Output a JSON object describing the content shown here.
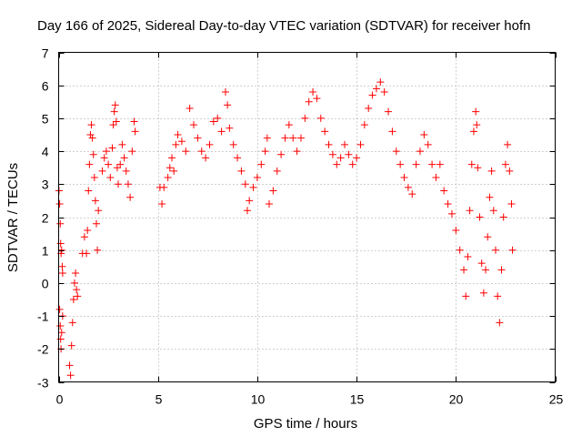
{
  "chart_data": {
    "type": "scatter",
    "title": "Day 166 of 2025, Sidereal Day-to-day VTEC variation (SDTVAR) for receiver hofn",
    "xlabel": "GPS time / hours",
    "ylabel": "SDTVAR / TECUs",
    "xlim": [
      0,
      25
    ],
    "ylim": [
      -3,
      7
    ],
    "xticks": [
      0,
      5,
      10,
      15,
      20,
      25
    ],
    "yticks": [
      -3,
      -2,
      -1,
      0,
      1,
      2,
      3,
      4,
      5,
      6,
      7
    ],
    "grid": true,
    "marker": "+",
    "series": [
      {
        "name": "SDTVAR",
        "color": "#ff0000",
        "points": [
          [
            0.02,
            2.8
          ],
          [
            0.05,
            2.4
          ],
          [
            0.08,
            1.8
          ],
          [
            0.1,
            1.2
          ],
          [
            0.12,
            0.9
          ],
          [
            0.15,
            1.0
          ],
          [
            0.18,
            0.5
          ],
          [
            0.2,
            0.3
          ],
          [
            0.05,
            -0.8
          ],
          [
            0.08,
            -1.3
          ],
          [
            0.1,
            -1.7
          ],
          [
            0.12,
            -2.0
          ],
          [
            0.15,
            -1.5
          ],
          [
            0.2,
            -1.0
          ],
          [
            0.55,
            -2.5
          ],
          [
            0.6,
            -2.8
          ],
          [
            0.65,
            -1.9
          ],
          [
            0.7,
            -1.2
          ],
          [
            0.75,
            -0.5
          ],
          [
            0.8,
            0.0
          ],
          [
            0.85,
            0.3
          ],
          [
            0.9,
            -0.2
          ],
          [
            0.95,
            -0.4
          ],
          [
            1.2,
            0.9
          ],
          [
            1.3,
            1.4
          ],
          [
            1.4,
            0.9
          ],
          [
            1.45,
            1.6
          ],
          [
            1.5,
            2.8
          ],
          [
            1.55,
            3.6
          ],
          [
            1.6,
            4.5
          ],
          [
            1.65,
            4.8
          ],
          [
            1.7,
            4.4
          ],
          [
            1.75,
            3.9
          ],
          [
            1.8,
            3.2
          ],
          [
            1.85,
            2.5
          ],
          [
            1.9,
            1.8
          ],
          [
            1.95,
            1.0
          ],
          [
            2.0,
            2.2
          ],
          [
            2.2,
            3.4
          ],
          [
            2.3,
            3.8
          ],
          [
            2.4,
            4.0
          ],
          [
            2.5,
            3.6
          ],
          [
            2.6,
            3.2
          ],
          [
            2.7,
            4.1
          ],
          [
            2.75,
            4.8
          ],
          [
            2.8,
            5.2
          ],
          [
            2.85,
            5.4
          ],
          [
            2.9,
            4.9
          ],
          [
            2.95,
            3.5
          ],
          [
            3.0,
            3.0
          ],
          [
            3.1,
            3.6
          ],
          [
            3.2,
            4.2
          ],
          [
            3.3,
            3.8
          ],
          [
            3.4,
            3.4
          ],
          [
            3.5,
            3.0
          ],
          [
            3.6,
            2.6
          ],
          [
            3.7,
            4.0
          ],
          [
            3.8,
            4.9
          ],
          [
            3.85,
            4.6
          ],
          [
            5.1,
            2.9
          ],
          [
            5.2,
            2.4
          ],
          [
            5.3,
            2.9
          ],
          [
            5.5,
            3.2
          ],
          [
            5.6,
            3.5
          ],
          [
            5.7,
            3.8
          ],
          [
            5.8,
            3.4
          ],
          [
            5.9,
            4.2
          ],
          [
            6.0,
            4.5
          ],
          [
            6.2,
            4.3
          ],
          [
            6.4,
            4.0
          ],
          [
            6.6,
            5.3
          ],
          [
            6.8,
            4.8
          ],
          [
            7.0,
            4.4
          ],
          [
            7.2,
            4.0
          ],
          [
            7.4,
            3.8
          ],
          [
            7.6,
            4.2
          ],
          [
            7.8,
            4.9
          ],
          [
            8.0,
            5.0
          ],
          [
            8.2,
            4.6
          ],
          [
            8.4,
            5.8
          ],
          [
            8.5,
            5.4
          ],
          [
            8.6,
            4.7
          ],
          [
            8.8,
            4.2
          ],
          [
            9.0,
            3.8
          ],
          [
            9.2,
            3.4
          ],
          [
            9.4,
            3.0
          ],
          [
            9.5,
            2.2
          ],
          [
            9.6,
            2.5
          ],
          [
            9.8,
            2.9
          ],
          [
            10.0,
            3.2
          ],
          [
            10.2,
            3.6
          ],
          [
            10.4,
            4.0
          ],
          [
            10.5,
            4.4
          ],
          [
            10.6,
            2.4
          ],
          [
            10.8,
            2.8
          ],
          [
            11.0,
            3.4
          ],
          [
            11.2,
            3.9
          ],
          [
            11.4,
            4.4
          ],
          [
            11.6,
            4.8
          ],
          [
            11.8,
            4.4
          ],
          [
            12.0,
            4.0
          ],
          [
            12.2,
            4.4
          ],
          [
            12.4,
            5.0
          ],
          [
            12.6,
            5.5
          ],
          [
            12.8,
            5.8
          ],
          [
            13.0,
            5.6
          ],
          [
            13.2,
            5.0
          ],
          [
            13.4,
            4.6
          ],
          [
            13.6,
            4.2
          ],
          [
            13.8,
            3.9
          ],
          [
            14.0,
            3.6
          ],
          [
            14.2,
            3.8
          ],
          [
            14.4,
            4.2
          ],
          [
            14.6,
            3.9
          ],
          [
            14.8,
            3.6
          ],
          [
            15.0,
            3.8
          ],
          [
            15.2,
            4.2
          ],
          [
            15.4,
            4.8
          ],
          [
            15.6,
            5.3
          ],
          [
            15.8,
            5.7
          ],
          [
            16.0,
            5.9
          ],
          [
            16.2,
            6.1
          ],
          [
            16.4,
            5.8
          ],
          [
            16.6,
            5.2
          ],
          [
            16.8,
            4.6
          ],
          [
            17.0,
            4.0
          ],
          [
            17.2,
            3.6
          ],
          [
            17.4,
            3.2
          ],
          [
            17.6,
            2.9
          ],
          [
            17.8,
            2.7
          ],
          [
            18.0,
            3.6
          ],
          [
            18.2,
            4.0
          ],
          [
            18.4,
            4.5
          ],
          [
            18.6,
            4.2
          ],
          [
            18.8,
            3.6
          ],
          [
            19.0,
            3.2
          ],
          [
            19.2,
            3.6
          ],
          [
            19.4,
            2.8
          ],
          [
            19.6,
            2.4
          ],
          [
            19.8,
            2.1
          ],
          [
            20.0,
            1.6
          ],
          [
            20.2,
            1.0
          ],
          [
            20.4,
            0.4
          ],
          [
            20.5,
            -0.4
          ],
          [
            20.6,
            0.8
          ],
          [
            20.7,
            2.2
          ],
          [
            20.8,
            3.6
          ],
          [
            20.9,
            4.6
          ],
          [
            21.0,
            5.2
          ],
          [
            21.05,
            4.8
          ],
          [
            21.1,
            3.5
          ],
          [
            21.2,
            2.0
          ],
          [
            21.3,
            0.6
          ],
          [
            21.4,
            -0.3
          ],
          [
            21.5,
            0.4
          ],
          [
            21.6,
            1.4
          ],
          [
            21.7,
            2.6
          ],
          [
            21.8,
            3.4
          ],
          [
            21.9,
            2.2
          ],
          [
            22.0,
            1.0
          ],
          [
            22.1,
            -0.4
          ],
          [
            22.2,
            -1.2
          ],
          [
            22.3,
            0.4
          ],
          [
            22.4,
            2.0
          ],
          [
            22.5,
            3.6
          ],
          [
            22.6,
            4.2
          ],
          [
            22.7,
            3.4
          ],
          [
            22.8,
            2.4
          ],
          [
            22.85,
            1.0
          ]
        ]
      }
    ]
  }
}
